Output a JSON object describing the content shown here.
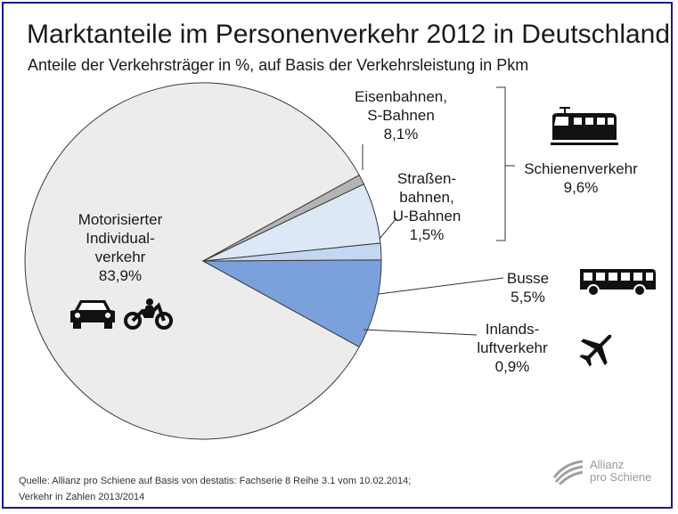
{
  "title": "Marktanteile im Personenverkehr 2012 in Deutschland",
  "subtitle": "Anteile der Verkehrsträger in %, auf Basis der Verkehrsleistung in Pkm",
  "labels": {
    "miv": [
      "Motorisierter",
      "Individual-",
      "verkehr",
      "83,9%"
    ],
    "eisenbahn": [
      "Eisenbahnen,",
      "S-Bahnen",
      "8,1%"
    ],
    "strassenbahn": [
      "Straßen-",
      "bahnen,",
      "U-Bahnen",
      "1,5%"
    ],
    "schiene": [
      "Schienenverkehr",
      "9,6%"
    ],
    "busse": [
      "Busse",
      "5,5%"
    ],
    "luft": [
      "Inlands-",
      "luftverkehr",
      "0,9%"
    ]
  },
  "source": [
    "Quelle: Allianz pro Schiene auf Basis von destatis: Fachserie 8 Reihe 3.1 vom 10.02.2014;",
    "Verkehr in Zahlen 2013/2014"
  ],
  "brand": [
    "Allianz",
    "pro Schiene"
  ],
  "icons": [
    "car-icon",
    "motorcycle-icon",
    "train-icon",
    "bus-icon",
    "airplane-icon",
    "allianz-logo-icon"
  ],
  "chart_data": {
    "type": "pie",
    "title": "Marktanteile im Personenverkehr 2012 in Deutschland",
    "categories": [
      "Motorisierter Individualverkehr",
      "Eisenbahnen, S-Bahnen",
      "Straßenbahnen, U-Bahnen",
      "Busse",
      "Inlandsluftverkehr"
    ],
    "values": [
      83.9,
      8.1,
      1.5,
      5.5,
      0.9
    ],
    "colors": [
      "#ececec",
      "#7aa1dc",
      "#c3d7f2",
      "#dde8f7",
      "#b4b4b4"
    ],
    "group": {
      "name": "Schienenverkehr",
      "value": 9.6
    }
  }
}
